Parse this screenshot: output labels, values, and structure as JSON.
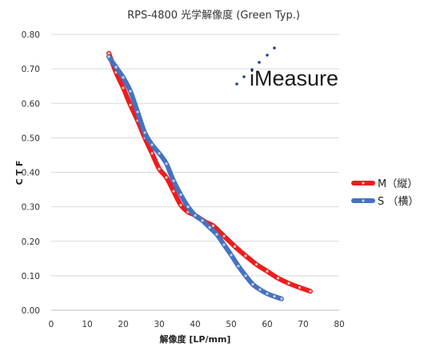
{
  "chart_data": {
    "type": "line",
    "title": "RPS-4800 光学解像度 (Green Typ.)",
    "xlabel": "解像度 [LP/mm]",
    "ylabel": "C T F",
    "xlim": [
      0,
      80
    ],
    "ylim": [
      0,
      0.8
    ],
    "x_ticks": [
      0,
      10,
      20,
      30,
      40,
      50,
      60,
      70,
      80
    ],
    "y_ticks": [
      "0.00",
      "0.10",
      "0.20",
      "0.30",
      "0.40",
      "0.50",
      "0.60",
      "0.70",
      "0.80"
    ],
    "grid": "horizontal",
    "legend_position": "right",
    "series": [
      {
        "name": "M（縦）",
        "color": "#ee1c1c",
        "x": [
          16,
          18,
          20,
          22,
          24,
          26,
          28,
          30,
          32,
          34,
          36,
          38,
          40,
          43,
          45,
          48,
          51,
          54,
          57,
          60,
          63,
          66,
          69,
          72
        ],
        "y": [
          0.745,
          0.69,
          0.645,
          0.595,
          0.55,
          0.5,
          0.455,
          0.41,
          0.385,
          0.345,
          0.305,
          0.285,
          0.275,
          0.255,
          0.245,
          0.215,
          0.185,
          0.158,
          0.133,
          0.113,
          0.093,
          0.078,
          0.066,
          0.055
        ]
      },
      {
        "name": "S （横）",
        "color": "#4472c4",
        "x": [
          16,
          18,
          20,
          22,
          24,
          26,
          28,
          30,
          32,
          34,
          36,
          38,
          40,
          42,
          44,
          46,
          48,
          50,
          52,
          54,
          56,
          58,
          60,
          62,
          64
        ],
        "y": [
          0.735,
          0.705,
          0.675,
          0.635,
          0.575,
          0.515,
          0.48,
          0.455,
          0.425,
          0.375,
          0.335,
          0.3,
          0.275,
          0.26,
          0.24,
          0.22,
          0.19,
          0.16,
          0.128,
          0.1,
          0.075,
          0.06,
          0.048,
          0.04,
          0.033
        ]
      }
    ]
  },
  "logo": {
    "text": "iMeasure"
  }
}
